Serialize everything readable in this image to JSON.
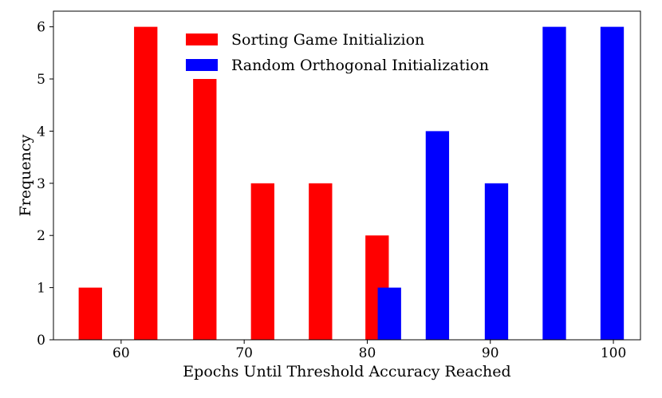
{
  "chart_data": {
    "type": "bar",
    "title": "",
    "xlabel": "Epochs Until Threshold Accuracy Reached",
    "ylabel": "Frequency",
    "xlim": [
      54.5,
      102.2
    ],
    "ylim": [
      0,
      6.3
    ],
    "xticks": [
      60,
      70,
      80,
      90,
      100
    ],
    "yticks": [
      0,
      1,
      2,
      3,
      4,
      5,
      6
    ],
    "grid": false,
    "legend_position": "top-center",
    "bar_width": 1.9,
    "series": [
      {
        "name": "Sorting Game Initializion",
        "color": "#ff0000",
        "x": [
          57.5,
          62.0,
          66.8,
          71.5,
          76.2,
          80.8
        ],
        "values": [
          1,
          6,
          5,
          3,
          3,
          2
        ]
      },
      {
        "name": "Random Orthogonal Initialization",
        "color": "#0000ff",
        "x": [
          81.8,
          85.7,
          90.5,
          95.2,
          99.9
        ],
        "values": [
          1,
          4,
          3,
          6,
          6
        ]
      }
    ]
  }
}
